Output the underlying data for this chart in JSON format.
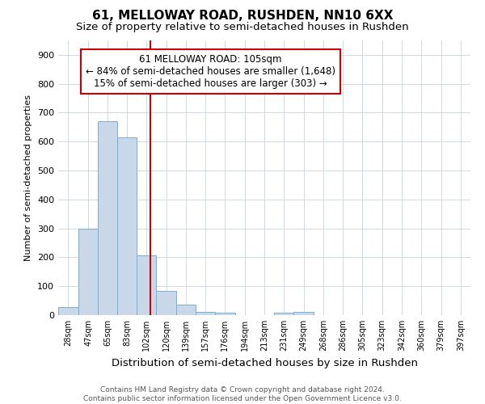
{
  "title": "61, MELLOWAY ROAD, RUSHDEN, NN10 6XX",
  "subtitle": "Size of property relative to semi-detached houses in Rushden",
  "xlabel": "Distribution of semi-detached houses by size in Rushden",
  "ylabel": "Number of semi-detached properties",
  "footer": "Contains HM Land Registry data © Crown copyright and database right 2024.\nContains public sector information licensed under the Open Government Licence v3.0.",
  "bin_labels": [
    "28sqm",
    "47sqm",
    "65sqm",
    "83sqm",
    "102sqm",
    "120sqm",
    "139sqm",
    "157sqm",
    "176sqm",
    "194sqm",
    "213sqm",
    "231sqm",
    "249sqm",
    "268sqm",
    "286sqm",
    "305sqm",
    "323sqm",
    "342sqm",
    "360sqm",
    "379sqm",
    "397sqm"
  ],
  "bin_edges": [
    18.5,
    37.5,
    56.0,
    74.0,
    92.5,
    111.0,
    129.5,
    148.0,
    166.5,
    185.0,
    203.5,
    222.0,
    240.5,
    259.0,
    277.5,
    296.0,
    314.5,
    333.0,
    351.5,
    370.0,
    388.5,
    407.0
  ],
  "counts": [
    28,
    300,
    670,
    615,
    207,
    83,
    35,
    10,
    8,
    0,
    0,
    8,
    10,
    0,
    0,
    0,
    0,
    0,
    0,
    0,
    0
  ],
  "property_size": 105,
  "bar_color": "#c8d8e8",
  "bar_edge_color": "#7bafd4",
  "red_line_color": "#cc0000",
  "annotation_box_color": "#cc0000",
  "annotation_line1": "61 MELLOWAY ROAD: 105sqm",
  "annotation_line2": "← 84% of semi-detached houses are smaller (1,648)",
  "annotation_line3": "15% of semi-detached houses are larger (303) →",
  "ylim": [
    0,
    950
  ],
  "yticks": [
    0,
    100,
    200,
    300,
    400,
    500,
    600,
    700,
    800,
    900
  ],
  "background_color": "#ffffff",
  "grid_color": "#c8d4dc",
  "title_fontsize": 11,
  "subtitle_fontsize": 9.5,
  "ann_fontsize": 8.5,
  "xlabel_fontsize": 9.5,
  "ylabel_fontsize": 8
}
